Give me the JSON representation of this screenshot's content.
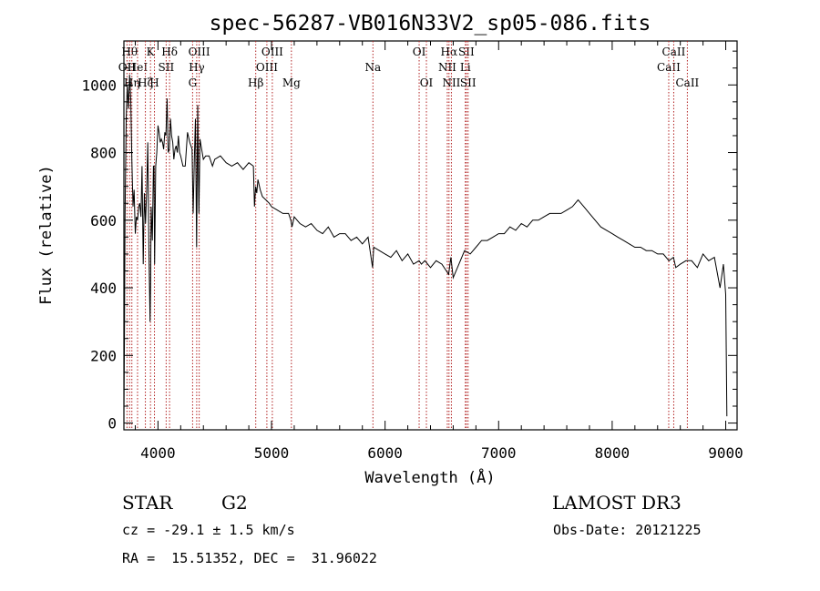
{
  "chart_data": {
    "type": "line",
    "title": "spec-56287-VB016N33V2_sp05-086.fits",
    "xlabel": "Wavelength (Å)",
    "ylabel": "Flux (relative)",
    "xlim": [
      3700,
      9100
    ],
    "ylim": [
      -20,
      1130
    ],
    "x_ticks": [
      4000,
      5000,
      6000,
      7000,
      8000,
      9000
    ],
    "y_ticks": [
      0,
      200,
      400,
      600,
      800,
      1000
    ],
    "x_tick_labels": [
      "4000",
      "5000",
      "6000",
      "7000",
      "8000",
      "9000"
    ],
    "y_tick_labels": [
      "0",
      "200",
      "400",
      "600",
      "800",
      "1000"
    ],
    "grid": false,
    "line_color": "#000000",
    "marker_color": "#b22222",
    "series": [
      {
        "name": "spectrum",
        "x": [
          3700,
          3705,
          3710,
          3720,
          3730,
          3740,
          3750,
          3760,
          3770,
          3780,
          3790,
          3800,
          3810,
          3820,
          3830,
          3840,
          3850,
          3860,
          3870,
          3880,
          3890,
          3900,
          3910,
          3920,
          3930,
          3935,
          3940,
          3950,
          3960,
          3965,
          3970,
          3980,
          3990,
          4000,
          4010,
          4020,
          4030,
          4040,
          4050,
          4060,
          4070,
          4080,
          4090,
          4100,
          4110,
          4120,
          4130,
          4140,
          4150,
          4160,
          4170,
          4180,
          4190,
          4200,
          4220,
          4240,
          4260,
          4280,
          4300,
          4310,
          4320,
          4330,
          4340,
          4350,
          4360,
          4370,
          4380,
          4400,
          4420,
          4450,
          4480,
          4500,
          4550,
          4600,
          4650,
          4700,
          4750,
          4800,
          4840,
          4850,
          4860,
          4870,
          4880,
          4900,
          4920,
          4950,
          4980,
          5000,
          5050,
          5100,
          5150,
          5170,
          5180,
          5200,
          5250,
          5300,
          5350,
          5400,
          5450,
          5500,
          5550,
          5600,
          5650,
          5700,
          5750,
          5800,
          5850,
          5890,
          5900,
          5950,
          6000,
          6050,
          6100,
          6150,
          6200,
          6250,
          6300,
          6320,
          6350,
          6400,
          6450,
          6500,
          6540,
          6560,
          6580,
          6600,
          6650,
          6700,
          6750,
          6800,
          6850,
          6900,
          6950,
          7000,
          7050,
          7100,
          7150,
          7200,
          7250,
          7300,
          7350,
          7400,
          7450,
          7500,
          7550,
          7600,
          7650,
          7700,
          7750,
          7800,
          7850,
          7900,
          7950,
          8000,
          8050,
          8100,
          8150,
          8200,
          8250,
          8300,
          8350,
          8400,
          8450,
          8500,
          8540,
          8560,
          8600,
          8650,
          8700,
          8750,
          8800,
          8850,
          8900,
          8950,
          8980,
          9000,
          9010
        ],
        "y": [
          30,
          250,
          600,
          900,
          1000,
          930,
          1030,
          960,
          780,
          640,
          690,
          560,
          610,
          600,
          640,
          650,
          610,
          760,
          470,
          680,
          590,
          680,
          830,
          520,
          300,
          420,
          640,
          540,
          760,
          760,
          470,
          760,
          800,
          880,
          860,
          830,
          840,
          830,
          810,
          860,
          850,
          960,
          800,
          810,
          900,
          850,
          830,
          780,
          810,
          820,
          800,
          850,
          800,
          790,
          760,
          760,
          860,
          830,
          810,
          620,
          780,
          900,
          520,
          940,
          620,
          840,
          820,
          780,
          790,
          790,
          760,
          780,
          790,
          770,
          760,
          770,
          750,
          770,
          760,
          640,
          700,
          680,
          720,
          690,
          670,
          660,
          650,
          640,
          630,
          620,
          620,
          600,
          580,
          610,
          590,
          580,
          590,
          570,
          560,
          580,
          550,
          560,
          560,
          540,
          550,
          530,
          550,
          460,
          520,
          510,
          500,
          490,
          510,
          480,
          500,
          470,
          480,
          470,
          480,
          460,
          480,
          470,
          450,
          440,
          490,
          430,
          470,
          510,
          500,
          520,
          540,
          540,
          550,
          560,
          560,
          580,
          570,
          590,
          580,
          600,
          600,
          610,
          620,
          620,
          620,
          630,
          640,
          660,
          640,
          620,
          600,
          580,
          570,
          560,
          550,
          540,
          530,
          520,
          520,
          510,
          510,
          500,
          500,
          480,
          490,
          460,
          470,
          480,
          480,
          460,
          500,
          480,
          490,
          400,
          470,
          380,
          20
        ]
      }
    ],
    "line_markers": [
      {
        "x": 3727,
        "label": "OII",
        "row": 2
      },
      {
        "x": 3750,
        "label": "Hθ",
        "row": 1
      },
      {
        "x": 3770,
        "label": "Hη",
        "row": 3
      },
      {
        "x": 3820,
        "label": "HeI",
        "row": 2
      },
      {
        "x": 3889,
        "label": "Hζ",
        "row": 3
      },
      {
        "x": 3934,
        "label": "K",
        "row": 1
      },
      {
        "x": 3969,
        "label": "H",
        "row": 3
      },
      {
        "x": 4072,
        "label": "SII",
        "row": 2
      },
      {
        "x": 4102,
        "label": "Hδ",
        "row": 1
      },
      {
        "x": 4305,
        "label": "G",
        "row": 3
      },
      {
        "x": 4341,
        "label": "Hγ",
        "row": 2
      },
      {
        "x": 4363,
        "label": "OIII",
        "row": 1
      },
      {
        "x": 4861,
        "label": "Hβ",
        "row": 3
      },
      {
        "x": 4959,
        "label": "OIII",
        "row": 2
      },
      {
        "x": 5007,
        "label": "OIII",
        "row": 1
      },
      {
        "x": 5175,
        "label": "Mg",
        "row": 3
      },
      {
        "x": 5893,
        "label": "Na",
        "row": 2
      },
      {
        "x": 6300,
        "label": "OI",
        "row": 1
      },
      {
        "x": 6364,
        "label": "OI",
        "row": 3
      },
      {
        "x": 6548,
        "label": "NII",
        "row": 2
      },
      {
        "x": 6563,
        "label": "Hα",
        "row": 1
      },
      {
        "x": 6584,
        "label": "NII",
        "row": 3
      },
      {
        "x": 6707,
        "label": "Li",
        "row": 2
      },
      {
        "x": 6716,
        "label": "SII",
        "row": 1
      },
      {
        "x": 6731,
        "label": "SII",
        "row": 3
      },
      {
        "x": 8498,
        "label": "CaII",
        "row": 2
      },
      {
        "x": 8542,
        "label": "CaII",
        "row": 1
      },
      {
        "x": 8662,
        "label": "CaII",
        "row": 3
      }
    ]
  },
  "info": {
    "object_class": "STAR",
    "subclass": "G2",
    "survey": "LAMOST DR3",
    "redshift_line": "cz = -29.1 ± 1.5 km/s",
    "obs_date_line": "Obs-Date: 20121225",
    "coords_line": "RA =  15.51352, DEC =  31.96022"
  }
}
